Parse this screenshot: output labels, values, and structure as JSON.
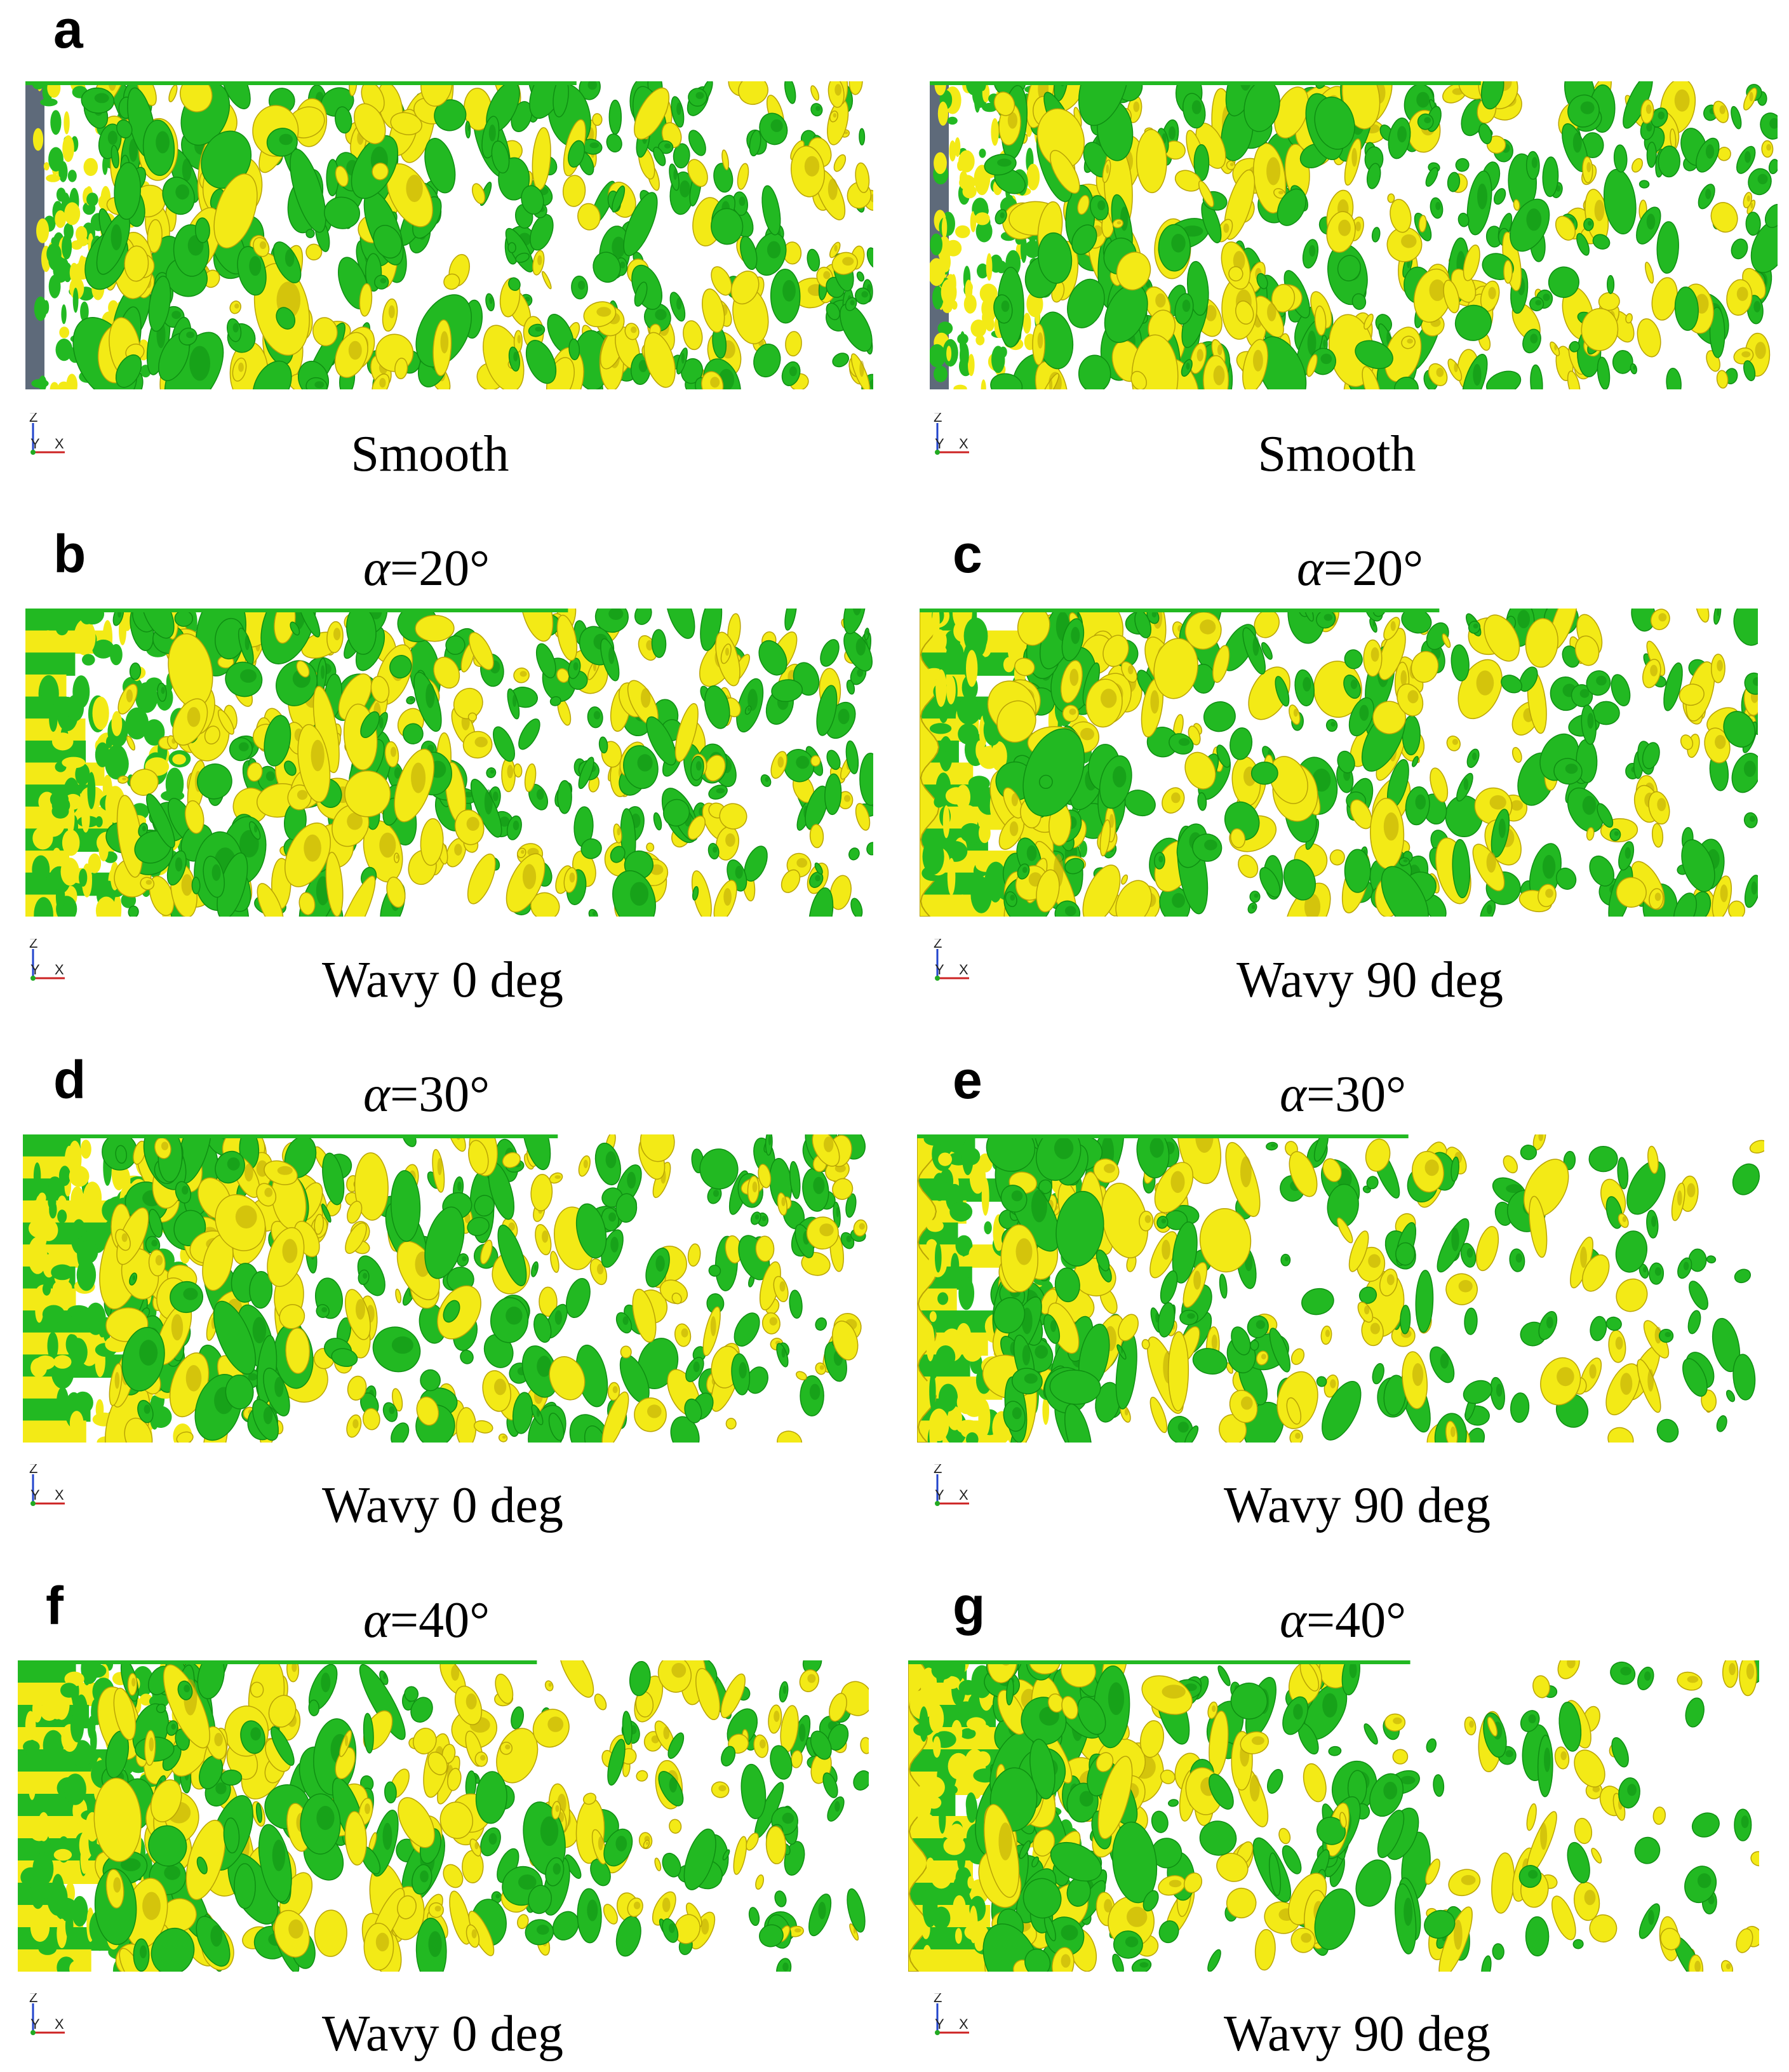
{
  "colors": {
    "vortex_green": "#22b922",
    "vortex_green_dark": "#0f8f12",
    "vortex_yellow": "#f3ea16",
    "vortex_yellow_dark": "#b9a406",
    "smooth_edge": "#5e6a7a",
    "background": "#ffffff"
  },
  "axis_triad": {
    "z": "Z",
    "y": "Y",
    "x": "X"
  },
  "panels": [
    {
      "id": "a-left",
      "letter": "a",
      "alpha_symbol": "",
      "alpha_value": "",
      "caption": "Smooth",
      "leading_edge": "smooth",
      "density": 1.0,
      "seed": 11
    },
    {
      "id": "a-right",
      "letter": "",
      "alpha_symbol": "",
      "alpha_value": "",
      "caption": "Smooth",
      "leading_edge": "smooth",
      "density": 1.0,
      "seed": 23
    },
    {
      "id": "b",
      "letter": "b",
      "alpha_symbol": "α",
      "alpha_value": "=20°",
      "caption": "Wavy 0 deg",
      "leading_edge": "wavy0",
      "density": 0.95,
      "seed": 37
    },
    {
      "id": "c",
      "letter": "c",
      "alpha_symbol": "α",
      "alpha_value": "=20°",
      "caption": "Wavy 90 deg",
      "leading_edge": "wavy90",
      "density": 0.85,
      "seed": 41
    },
    {
      "id": "d",
      "letter": "d",
      "alpha_symbol": "α",
      "alpha_value": "=30°",
      "caption": "Wavy 0 deg",
      "leading_edge": "wavy0",
      "density": 0.9,
      "seed": 53
    },
    {
      "id": "e",
      "letter": "e",
      "alpha_symbol": "α",
      "alpha_value": "=30°",
      "caption": "Wavy 90 deg",
      "leading_edge": "wavy90",
      "density": 0.65,
      "seed": 67
    },
    {
      "id": "f",
      "letter": "f",
      "alpha_symbol": "α",
      "alpha_value": "=40°",
      "caption": "Wavy 0 deg",
      "leading_edge": "wavy0",
      "density": 0.8,
      "seed": 71
    },
    {
      "id": "g",
      "letter": "g",
      "alpha_symbol": "α",
      "alpha_value": "=40°",
      "caption": "Wavy 90 deg",
      "leading_edge": "wavy90",
      "density": 0.7,
      "seed": 83
    }
  ]
}
